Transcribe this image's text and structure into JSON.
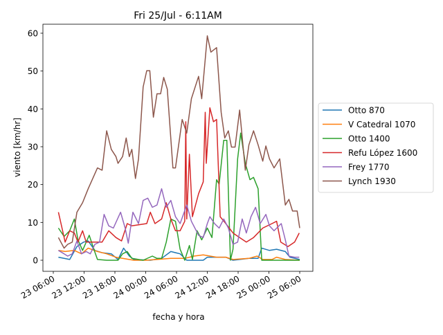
{
  "chart_data": {
    "type": "line",
    "title": "Fri 25/Jul - 6:11AM",
    "xlabel": "fecha y hora",
    "ylabel": "viento [km/hr]",
    "x_units": "hours since 23 06:00",
    "xlim": [
      -3.5,
      49.5
    ],
    "ylim": [
      -3,
      63
    ],
    "x_ticks": [
      {
        "x": 0,
        "label": "23 06:00"
      },
      {
        "x": 6,
        "label": "23 12:00"
      },
      {
        "x": 12,
        "label": "23 18:00"
      },
      {
        "x": 18,
        "label": "24 00:00"
      },
      {
        "x": 24,
        "label": "24 06:00"
      },
      {
        "x": 30,
        "label": "24 12:00"
      },
      {
        "x": 36,
        "label": "24 18:00"
      },
      {
        "x": 42,
        "label": "25 00:00"
      },
      {
        "x": 48,
        "label": "25 06:00"
      }
    ],
    "y_ticks": [
      0,
      10,
      20,
      30,
      40,
      50,
      60
    ],
    "grid": false,
    "legend_position": "right-outside",
    "series": [
      {
        "name": "Otto 870",
        "color": "#1f77b4",
        "points": [
          [
            1.0,
            0.8
          ],
          [
            3.2,
            0.2
          ],
          [
            4.6,
            3.6
          ],
          [
            5.9,
            4.8
          ],
          [
            6.8,
            5.1
          ],
          [
            8.1,
            2.6
          ],
          [
            9.5,
            2.0
          ],
          [
            11.3,
            1.7
          ],
          [
            12.6,
            0.2
          ],
          [
            13.7,
            3.2
          ],
          [
            14.8,
            1.1
          ],
          [
            15.7,
            0.2
          ],
          [
            18.9,
            0
          ],
          [
            21.1,
            0.5
          ],
          [
            22.9,
            2.3
          ],
          [
            24.7,
            1.7
          ],
          [
            26.0,
            0
          ],
          [
            29.2,
            0
          ],
          [
            30.0,
            0.8
          ],
          [
            33.6,
            0.8
          ],
          [
            35.0,
            0
          ],
          [
            38.1,
            0.5
          ],
          [
            39.9,
            0.5
          ],
          [
            40.6,
            3.2
          ],
          [
            42.1,
            2.6
          ],
          [
            43.5,
            2.9
          ],
          [
            45.2,
            2.3
          ],
          [
            46.1,
            0.8
          ],
          [
            48.0,
            0.2
          ]
        ]
      },
      {
        "name": "V Catedral 1070",
        "color": "#ff7f0e",
        "points": [
          [
            1.0,
            2.6
          ],
          [
            2.3,
            2.3
          ],
          [
            4.1,
            2.6
          ],
          [
            5.5,
            1.7
          ],
          [
            6.8,
            3.2
          ],
          [
            8.6,
            2.3
          ],
          [
            10.4,
            1.7
          ],
          [
            12.2,
            0.8
          ],
          [
            15.7,
            0
          ],
          [
            17.97,
            0
          ],
          [
            20.2,
            0.2
          ],
          [
            22.9,
            0.5
          ],
          [
            25.6,
            0.5
          ],
          [
            27.4,
            1.1
          ],
          [
            29.2,
            1.4
          ],
          [
            31.8,
            0.8
          ],
          [
            33.6,
            0.8
          ],
          [
            35.0,
            0.2
          ],
          [
            38.1,
            0.5
          ],
          [
            39.7,
            1.1
          ],
          [
            40.8,
            0.2
          ],
          [
            42.6,
            0.2
          ],
          [
            43.5,
            0.8
          ],
          [
            45.2,
            0.2
          ],
          [
            48.0,
            0
          ]
        ]
      },
      {
        "name": "Otto 1400",
        "color": "#2ca02c",
        "points": [
          [
            1.0,
            8.5
          ],
          [
            2.1,
            6.3
          ],
          [
            3.2,
            7.8
          ],
          [
            4.1,
            10.9
          ],
          [
            4.8,
            5.4
          ],
          [
            5.7,
            2.6
          ],
          [
            6.4,
            4.8
          ],
          [
            7.0,
            6.6
          ],
          [
            7.9,
            2.9
          ],
          [
            8.6,
            0.2
          ],
          [
            10.4,
            0
          ],
          [
            12.6,
            0
          ],
          [
            13.5,
            1.7
          ],
          [
            14.4,
            2.3
          ],
          [
            15.3,
            0.5
          ],
          [
            17.5,
            0
          ],
          [
            19.3,
            1.1
          ],
          [
            20.2,
            0.5
          ],
          [
            21.1,
            0.5
          ],
          [
            22.0,
            4.8
          ],
          [
            22.9,
            10.9
          ],
          [
            23.8,
            10.3
          ],
          [
            24.7,
            2.9
          ],
          [
            25.6,
            0
          ],
          [
            26.5,
            3.9
          ],
          [
            27.1,
            0.2
          ],
          [
            28.0,
            7.8
          ],
          [
            28.9,
            5.4
          ],
          [
            30.0,
            8.5
          ],
          [
            30.9,
            6.0
          ],
          [
            31.8,
            21.3
          ],
          [
            32.3,
            20.1
          ],
          [
            33.2,
            31.7
          ],
          [
            33.8,
            31.7
          ],
          [
            34.5,
            0
          ],
          [
            35.0,
            2.9
          ],
          [
            35.9,
            26.8
          ],
          [
            36.5,
            33.6
          ],
          [
            37.4,
            25.6
          ],
          [
            38.3,
            21.3
          ],
          [
            39.0,
            21.9
          ],
          [
            39.9,
            18.9
          ],
          [
            40.6,
            0
          ],
          [
            42.6,
            0
          ],
          [
            48.0,
            0
          ]
        ]
      },
      {
        "name": "Refu López 1600",
        "color": "#d62728",
        "points": [
          [
            1.0,
            12.7
          ],
          [
            1.7,
            8.5
          ],
          [
            2.3,
            4.8
          ],
          [
            3.2,
            7.8
          ],
          [
            4.1,
            7.2
          ],
          [
            4.8,
            4.8
          ],
          [
            5.7,
            7.8
          ],
          [
            6.4,
            4.8
          ],
          [
            7.7,
            4.8
          ],
          [
            9.5,
            4.8
          ],
          [
            10.8,
            7.8
          ],
          [
            12.2,
            6.0
          ],
          [
            13.3,
            5.1
          ],
          [
            14.4,
            9.7
          ],
          [
            15.3,
            9.1
          ],
          [
            18.2,
            9.7
          ],
          [
            18.9,
            12.7
          ],
          [
            19.8,
            9.7
          ],
          [
            21.1,
            10.9
          ],
          [
            22.0,
            15.2
          ],
          [
            22.9,
            10.9
          ],
          [
            23.8,
            7.8
          ],
          [
            24.7,
            7.8
          ],
          [
            25.6,
            10.3
          ],
          [
            25.8,
            36.6
          ],
          [
            26.0,
            10.9
          ],
          [
            26.5,
            28.0
          ],
          [
            27.1,
            11.5
          ],
          [
            28.3,
            17.6
          ],
          [
            29.2,
            20.7
          ],
          [
            29.6,
            39.1
          ],
          [
            29.8,
            25.6
          ],
          [
            30.5,
            40.3
          ],
          [
            31.2,
            36.6
          ],
          [
            31.8,
            37.2
          ],
          [
            32.5,
            11.5
          ],
          [
            33.6,
            9.7
          ],
          [
            35.0,
            7.2
          ],
          [
            36.3,
            6.0
          ],
          [
            37.6,
            4.8
          ],
          [
            39.0,
            6.0
          ],
          [
            40.8,
            8.5
          ],
          [
            42.6,
            9.7
          ],
          [
            43.5,
            10.3
          ],
          [
            44.3,
            4.8
          ],
          [
            45.7,
            3.6
          ],
          [
            47.0,
            4.8
          ],
          [
            47.9,
            7.2
          ]
        ]
      },
      {
        "name": "Frey 1770",
        "color": "#9467bd",
        "points": [
          [
            1.0,
            2.6
          ],
          [
            2.1,
            1.7
          ],
          [
            2.8,
            1.1
          ],
          [
            3.7,
            1.7
          ],
          [
            4.6,
            5.1
          ],
          [
            5.5,
            1.7
          ],
          [
            6.4,
            2.3
          ],
          [
            7.2,
            1.7
          ],
          [
            8.1,
            4.2
          ],
          [
            9.0,
            4.8
          ],
          [
            9.9,
            12.1
          ],
          [
            10.8,
            9.1
          ],
          [
            11.7,
            8.5
          ],
          [
            13.1,
            12.7
          ],
          [
            14.0,
            8.5
          ],
          [
            14.6,
            4.5
          ],
          [
            15.5,
            12.7
          ],
          [
            16.6,
            9.7
          ],
          [
            17.5,
            15.8
          ],
          [
            18.4,
            16.4
          ],
          [
            19.3,
            14.0
          ],
          [
            20.2,
            14.6
          ],
          [
            21.1,
            18.9
          ],
          [
            22.0,
            14.0
          ],
          [
            22.9,
            15.8
          ],
          [
            23.8,
            11.5
          ],
          [
            24.7,
            9.7
          ],
          [
            26.0,
            14.6
          ],
          [
            26.9,
            10.3
          ],
          [
            28.3,
            6.6
          ],
          [
            29.2,
            6.0
          ],
          [
            30.0,
            9.7
          ],
          [
            30.5,
            11.5
          ],
          [
            31.4,
            9.7
          ],
          [
            32.3,
            8.5
          ],
          [
            33.2,
            10.9
          ],
          [
            34.1,
            8.5
          ],
          [
            35.0,
            4.2
          ],
          [
            35.9,
            4.8
          ],
          [
            36.8,
            10.9
          ],
          [
            37.6,
            7.2
          ],
          [
            38.5,
            11.5
          ],
          [
            39.4,
            14.0
          ],
          [
            40.3,
            9.7
          ],
          [
            41.4,
            12.1
          ],
          [
            42.1,
            9.1
          ],
          [
            43.0,
            7.8
          ],
          [
            44.4,
            9.7
          ],
          [
            45.2,
            5.4
          ],
          [
            45.9,
            1.1
          ],
          [
            47.0,
            0.8
          ],
          [
            47.9,
            0.8
          ]
        ]
      },
      {
        "name": "Lynch 1930",
        "color": "#8c564b",
        "points": [
          [
            1.0,
            6.0
          ],
          [
            2.1,
            3.2
          ],
          [
            2.8,
            4.2
          ],
          [
            3.7,
            4.8
          ],
          [
            4.6,
            12.7
          ],
          [
            5.7,
            15.2
          ],
          [
            6.8,
            18.9
          ],
          [
            8.6,
            24.4
          ],
          [
            9.5,
            23.8
          ],
          [
            10.4,
            34.2
          ],
          [
            11.3,
            29.3
          ],
          [
            12.2,
            27.4
          ],
          [
            12.6,
            25.6
          ],
          [
            13.5,
            27.4
          ],
          [
            14.2,
            32.3
          ],
          [
            14.8,
            27.4
          ],
          [
            15.3,
            29.3
          ],
          [
            16.0,
            21.6
          ],
          [
            16.6,
            26.8
          ],
          [
            17.5,
            45.8
          ],
          [
            18.2,
            50.1
          ],
          [
            18.8,
            50.1
          ],
          [
            19.5,
            37.8
          ],
          [
            20.2,
            44.0
          ],
          [
            20.9,
            44.0
          ],
          [
            21.5,
            48.3
          ],
          [
            22.2,
            45.2
          ],
          [
            23.3,
            24.4
          ],
          [
            23.8,
            24.4
          ],
          [
            25.1,
            37.2
          ],
          [
            26.0,
            33.6
          ],
          [
            26.9,
            42.7
          ],
          [
            28.3,
            48.6
          ],
          [
            28.9,
            42.7
          ],
          [
            30.0,
            59.3
          ],
          [
            30.7,
            55.0
          ],
          [
            31.8,
            56.2
          ],
          [
            32.7,
            39.1
          ],
          [
            33.4,
            32.3
          ],
          [
            34.1,
            34.2
          ],
          [
            34.7,
            29.9
          ],
          [
            35.4,
            29.9
          ],
          [
            36.3,
            39.7
          ],
          [
            37.4,
            23.8
          ],
          [
            38.1,
            30.5
          ],
          [
            39.0,
            34.2
          ],
          [
            39.9,
            30.5
          ],
          [
            40.8,
            26.2
          ],
          [
            41.4,
            30.2
          ],
          [
            42.1,
            26.8
          ],
          [
            43.0,
            24.4
          ],
          [
            44.1,
            26.8
          ],
          [
            45.2,
            14.6
          ],
          [
            45.9,
            16.1
          ],
          [
            46.6,
            13.0
          ],
          [
            47.5,
            13.0
          ],
          [
            48.0,
            8.5
          ]
        ]
      }
    ]
  }
}
